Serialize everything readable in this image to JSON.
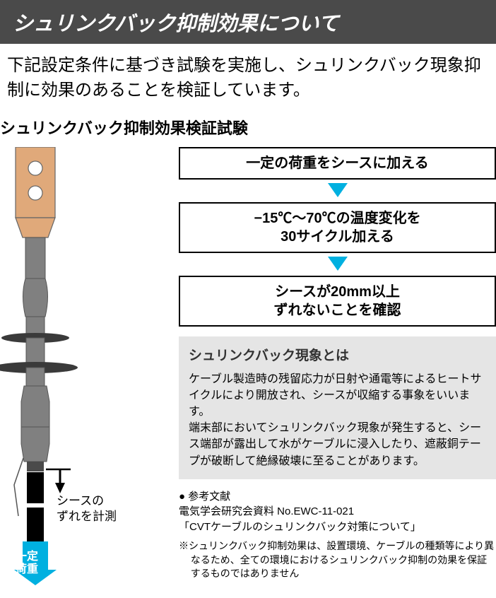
{
  "header": {
    "title": "シュリンクバック抑制効果について"
  },
  "intro": "下記設定条件に基づき試験を実施し、シュリンクバック現象抑制に効果のあることを検証しています。",
  "subheading": "シュリンクバック抑制効果検証試験",
  "steps": {
    "s1": "一定の荷重をシースに加える",
    "s2_l1": "−15℃～70℃の温度変化を",
    "s2_l2": "30サイクル加える",
    "s3_l1": "シースが20mm以上",
    "s3_l2": "ずれないことを確認",
    "arrow_color": "#00b0e0",
    "border_color": "#000000"
  },
  "info": {
    "title": "シュリンクバック現象とは",
    "body": "ケーブル製造時の残留応力が日射や通電等によるヒートサイクルにより開放され、シースが収縮する事象をいいます。\n端末部においてシュリンクバック現象が発生すると、シース端部が露出して水がケーブルに浸入したり、遮蔽銅テープが破断して絶縁破壊に至ることがあります。",
    "bg_color": "#e5e5e5"
  },
  "refs": {
    "head": "● 参考文献",
    "line1": "電気学会研究会資料 No.EWC-11-021",
    "line2": "「CVTケーブルのシュリンクバック対策について」",
    "disclaimer": "※シュリンクバック抑制効果は、設置環境、ケーブルの種類等により異なるため、全ての環境におけるシュリンクバック抑制の効果を保証するものではありません"
  },
  "diagram": {
    "meas_label_l1": "シースの",
    "meas_label_l2": "ずれを計測",
    "load_label_l1": "一定",
    "load_label_l2": "荷重",
    "colors": {
      "lug": "#e0a97a",
      "lug_stroke": "#666666",
      "body": "#808080",
      "body_dark": "#4a4a4a",
      "disc": "#3a3a3a",
      "cable_black": "#000000",
      "cable_white": "#ffffff",
      "arrow_black": "#000000",
      "arrow_blue": "#00b0e0"
    }
  }
}
